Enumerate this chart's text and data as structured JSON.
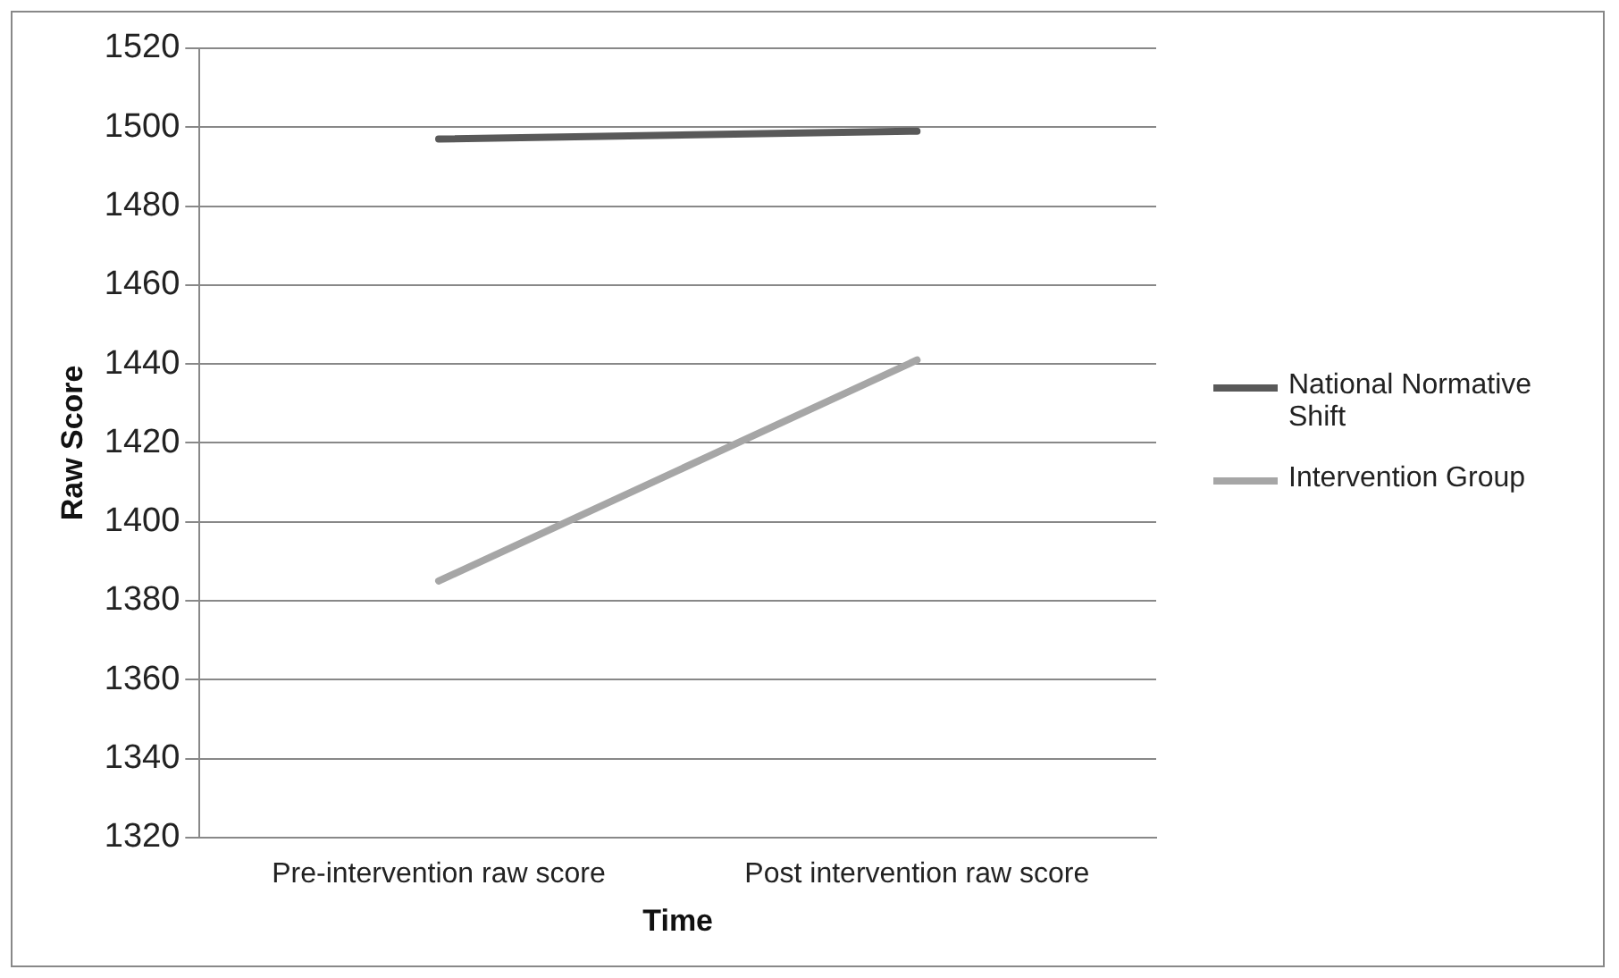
{
  "chart_data": {
    "type": "line",
    "xlabel": "Time",
    "ylabel": "Raw Score",
    "categories": [
      "Pre-intervention raw score",
      "Post intervention raw score"
    ],
    "series": [
      {
        "name": "National Normative Shift",
        "color": "#595959",
        "values": [
          1497,
          1499
        ]
      },
      {
        "name": "Intervention Group",
        "color": "#a6a6a6",
        "values": [
          1385,
          1441
        ]
      }
    ],
    "ylim": [
      1320,
      1520
    ],
    "yticks": [
      1320,
      1340,
      1360,
      1380,
      1400,
      1420,
      1440,
      1460,
      1480,
      1500,
      1520
    ],
    "grid": "y",
    "legend": "right",
    "marker": "none",
    "line_style": "solid"
  }
}
